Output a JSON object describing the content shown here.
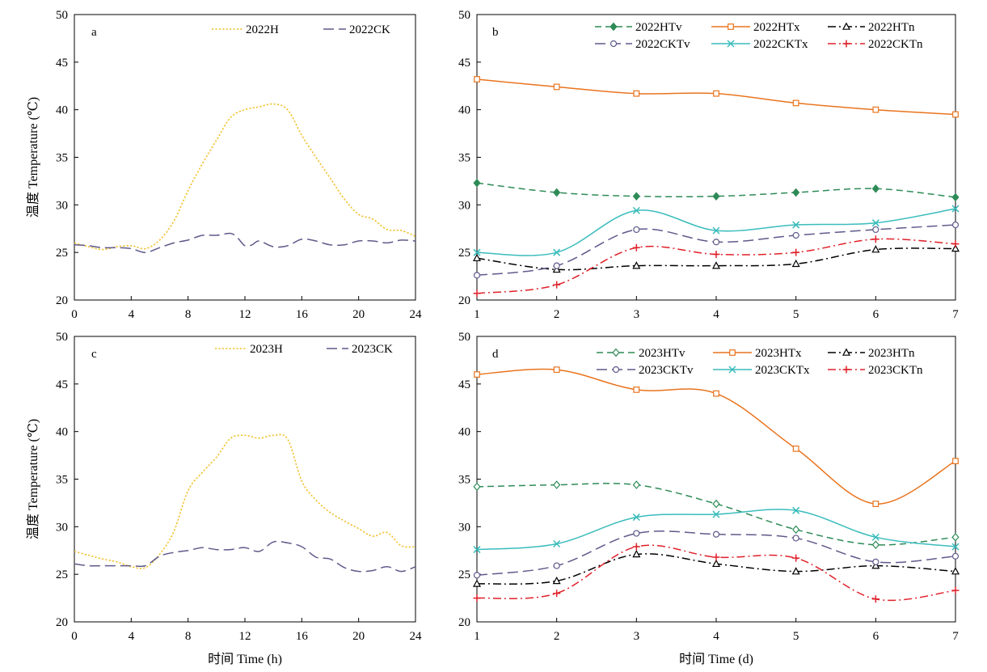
{
  "chart_data": [
    {
      "panel": "a",
      "type": "line",
      "xlim": [
        0,
        24
      ],
      "ylim": [
        20,
        50
      ],
      "xticks": [
        0,
        4,
        8,
        12,
        16,
        20,
        24
      ],
      "yticks": [
        20,
        25,
        30,
        35,
        40,
        45,
        50
      ],
      "ylabel": "温度 Temperature (℃)",
      "xlabel": "",
      "legend_position": "top-right",
      "series": [
        {
          "name": "2022H",
          "color": "#f2c12e",
          "dash": "dotted",
          "marker": "none",
          "x": [
            0,
            1,
            2,
            3,
            4,
            5,
            6,
            7,
            8,
            9,
            10,
            11,
            12,
            13,
            14,
            15,
            16,
            17,
            18,
            19,
            20,
            21,
            22,
            23,
            24
          ],
          "values": [
            26.0,
            25.6,
            25.3,
            25.6,
            25.7,
            25.4,
            26.3,
            28.3,
            31.5,
            34.3,
            36.8,
            39.2,
            40.0,
            40.3,
            40.6,
            40.0,
            37.3,
            35.0,
            32.8,
            30.6,
            29.0,
            28.5,
            27.4,
            27.3,
            26.7
          ]
        },
        {
          "name": "2022CK",
          "color": "#5f5a8a",
          "dash": "longdash",
          "marker": "none",
          "x": [
            0,
            1,
            2,
            3,
            4,
            5,
            6,
            7,
            8,
            9,
            10,
            11,
            11.5,
            12,
            12.5,
            13,
            14,
            15,
            16,
            17,
            18,
            19,
            20,
            21,
            22,
            23,
            24
          ],
          "values": [
            25.8,
            25.7,
            25.5,
            25.5,
            25.4,
            25.0,
            25.5,
            26.0,
            26.3,
            26.8,
            26.8,
            27.0,
            26.5,
            25.7,
            25.8,
            26.2,
            25.6,
            25.7,
            26.4,
            26.2,
            25.8,
            25.8,
            26.2,
            26.2,
            26.0,
            26.3,
            26.2
          ]
        }
      ]
    },
    {
      "panel": "b",
      "type": "line",
      "xlim": [
        1,
        7
      ],
      "ylim": [
        20,
        50
      ],
      "xticks": [
        1,
        2,
        3,
        4,
        5,
        6,
        7
      ],
      "yticks": [
        20,
        25,
        30,
        35,
        40,
        45,
        50
      ],
      "ylabel": "",
      "xlabel": "",
      "legend_position": "top",
      "x": [
        1,
        2,
        3,
        4,
        5,
        6,
        7
      ],
      "series": [
        {
          "name": "2022HTv",
          "color": "#2e8b57",
          "dash": "dashed",
          "marker": "diamond-filled",
          "values": [
            32.3,
            31.3,
            30.9,
            30.9,
            31.3,
            31.7,
            30.8
          ]
        },
        {
          "name": "2022HTx",
          "color": "#e8741e",
          "dash": "solid",
          "marker": "square-open",
          "values": [
            43.2,
            42.4,
            41.7,
            41.7,
            40.7,
            40.0,
            39.5
          ]
        },
        {
          "name": "2022HTn",
          "color": "#000000",
          "dash": "dashdot",
          "marker": "triangle-open",
          "values": [
            24.4,
            23.2,
            23.6,
            23.6,
            23.8,
            25.3,
            25.4
          ]
        },
        {
          "name": "2022CKTv",
          "color": "#5f5a8a",
          "dash": "longdash",
          "marker": "circle-open",
          "values": [
            22.6,
            23.6,
            27.4,
            26.1,
            26.8,
            27.4,
            27.9
          ]
        },
        {
          "name": "2022CKTx",
          "color": "#3bbcbc",
          "dash": "solid",
          "marker": "x",
          "values": [
            25.0,
            25.0,
            29.4,
            27.3,
            27.9,
            28.1,
            29.6
          ]
        },
        {
          "name": "2022CKTn",
          "color": "#e0202a",
          "dash": "dashdot",
          "marker": "plus",
          "values": [
            20.7,
            21.6,
            25.5,
            24.8,
            25.0,
            26.4,
            25.9
          ]
        }
      ]
    },
    {
      "panel": "c",
      "type": "line",
      "xlim": [
        0,
        24
      ],
      "ylim": [
        20,
        50
      ],
      "xticks": [
        0,
        4,
        8,
        12,
        16,
        20,
        24
      ],
      "yticks": [
        20,
        25,
        30,
        35,
        40,
        45,
        50
      ],
      "ylabel": "温度 Temperature (℃)",
      "xlabel": "时间 Time (h)",
      "legend_position": "top-right",
      "series": [
        {
          "name": "2023H",
          "color": "#f2c12e",
          "dash": "dotted",
          "marker": "none",
          "x": [
            0,
            1,
            2,
            3,
            4,
            5,
            6,
            7,
            8,
            9,
            10,
            11,
            12,
            13,
            14,
            15,
            16,
            17,
            18,
            19,
            20,
            21,
            22,
            23,
            24
          ],
          "values": [
            27.4,
            27.0,
            26.6,
            26.3,
            25.8,
            25.7,
            27.1,
            29.5,
            33.8,
            35.7,
            37.3,
            39.3,
            39.6,
            39.3,
            39.6,
            39.2,
            34.8,
            32.8,
            31.5,
            30.6,
            29.8,
            29.0,
            29.4,
            28.0,
            27.9
          ]
        },
        {
          "name": "2023CK",
          "color": "#5f5a8a",
          "dash": "longdash",
          "marker": "none",
          "x": [
            0,
            1,
            2,
            3,
            4,
            5,
            6,
            7,
            8,
            9,
            10,
            11,
            12,
            13,
            14,
            15,
            16,
            17,
            18,
            19,
            20,
            21,
            22,
            23,
            24
          ],
          "values": [
            26.1,
            25.9,
            25.9,
            25.9,
            25.9,
            25.9,
            26.9,
            27.3,
            27.5,
            27.8,
            27.6,
            27.6,
            27.8,
            27.4,
            28.4,
            28.3,
            27.9,
            26.8,
            26.6,
            25.7,
            25.3,
            25.4,
            25.8,
            25.3,
            25.8
          ]
        }
      ]
    },
    {
      "panel": "d",
      "type": "line",
      "xlim": [
        1,
        7
      ],
      "ylim": [
        20,
        50
      ],
      "xticks": [
        1,
        2,
        3,
        4,
        5,
        6,
        7
      ],
      "yticks": [
        20,
        25,
        30,
        35,
        40,
        45,
        50
      ],
      "ylabel": "",
      "xlabel": "时间 Time (d)",
      "legend_position": "top",
      "x": [
        1,
        2,
        3,
        4,
        5,
        6,
        7
      ],
      "series": [
        {
          "name": "2023HTv",
          "color": "#2e8b57",
          "dash": "dashed",
          "marker": "diamond-open",
          "values": [
            34.2,
            34.4,
            34.4,
            32.4,
            29.7,
            28.1,
            28.9
          ]
        },
        {
          "name": "2023HTx",
          "color": "#e8741e",
          "dash": "solid",
          "marker": "square-open",
          "values": [
            46.0,
            46.5,
            44.4,
            44.0,
            38.2,
            32.4,
            36.9
          ]
        },
        {
          "name": "2023HTn",
          "color": "#000000",
          "dash": "dashdot",
          "marker": "triangle-open",
          "values": [
            24.0,
            24.3,
            27.1,
            26.1,
            25.3,
            25.9,
            25.3
          ]
        },
        {
          "name": "2023CKTv",
          "color": "#5f5a8a",
          "dash": "longdash",
          "marker": "circle-open",
          "values": [
            24.9,
            25.9,
            29.3,
            29.2,
            28.8,
            26.3,
            26.9
          ]
        },
        {
          "name": "2023CKTx",
          "color": "#3bbcbc",
          "dash": "solid",
          "marker": "x",
          "values": [
            27.6,
            28.2,
            31.0,
            31.3,
            31.7,
            28.9,
            27.9
          ]
        },
        {
          "name": "2023CKTn",
          "color": "#e0202a",
          "dash": "dashdot",
          "marker": "plus",
          "values": [
            22.5,
            23.0,
            27.9,
            26.8,
            26.7,
            22.4,
            23.3
          ]
        }
      ]
    }
  ]
}
